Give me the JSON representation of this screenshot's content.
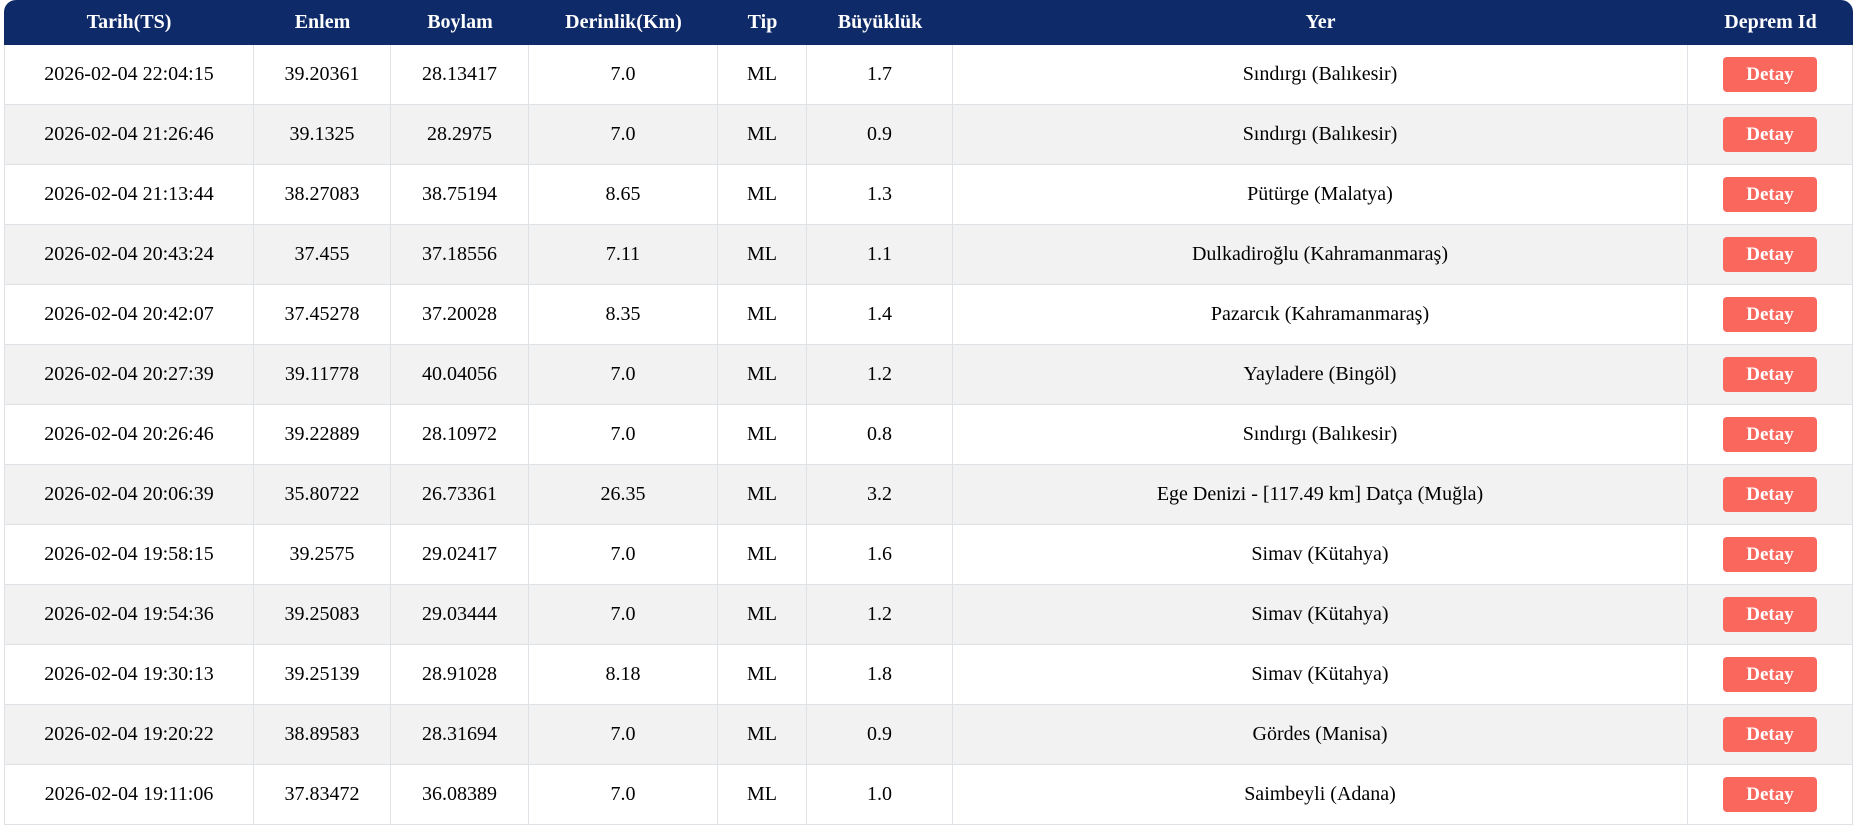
{
  "table": {
    "columns": [
      "Tarih(TS)",
      "Enlem",
      "Boylam",
      "Derinlik(Km)",
      "Tip",
      "Büyüklük",
      "Yer",
      "Deprem Id"
    ],
    "detail_button_label": "Detay",
    "rows": [
      {
        "tarih": "2026-02-04 22:04:15",
        "enlem": "39.20361",
        "boylam": "28.13417",
        "derinlik": "7.0",
        "tip": "ML",
        "buyukluk": "1.7",
        "yer": "Sındırgı (Balıkesir)"
      },
      {
        "tarih": "2026-02-04 21:26:46",
        "enlem": "39.1325",
        "boylam": "28.2975",
        "derinlik": "7.0",
        "tip": "ML",
        "buyukluk": "0.9",
        "yer": "Sındırgı (Balıkesir)"
      },
      {
        "tarih": "2026-02-04 21:13:44",
        "enlem": "38.27083",
        "boylam": "38.75194",
        "derinlik": "8.65",
        "tip": "ML",
        "buyukluk": "1.3",
        "yer": "Pütürge (Malatya)"
      },
      {
        "tarih": "2026-02-04 20:43:24",
        "enlem": "37.455",
        "boylam": "37.18556",
        "derinlik": "7.11",
        "tip": "ML",
        "buyukluk": "1.1",
        "yer": "Dulkadiroğlu (Kahramanmaraş)"
      },
      {
        "tarih": "2026-02-04 20:42:07",
        "enlem": "37.45278",
        "boylam": "37.20028",
        "derinlik": "8.35",
        "tip": "ML",
        "buyukluk": "1.4",
        "yer": "Pazarcık (Kahramanmaraş)"
      },
      {
        "tarih": "2026-02-04 20:27:39",
        "enlem": "39.11778",
        "boylam": "40.04056",
        "derinlik": "7.0",
        "tip": "ML",
        "buyukluk": "1.2",
        "yer": "Yayladere (Bingöl)"
      },
      {
        "tarih": "2026-02-04 20:26:46",
        "enlem": "39.22889",
        "boylam": "28.10972",
        "derinlik": "7.0",
        "tip": "ML",
        "buyukluk": "0.8",
        "yer": "Sındırgı (Balıkesir)"
      },
      {
        "tarih": "2026-02-04 20:06:39",
        "enlem": "35.80722",
        "boylam": "26.73361",
        "derinlik": "26.35",
        "tip": "ML",
        "buyukluk": "3.2",
        "yer": "Ege Denizi - [117.49 km] Datça (Muğla)"
      },
      {
        "tarih": "2026-02-04 19:58:15",
        "enlem": "39.2575",
        "boylam": "29.02417",
        "derinlik": "7.0",
        "tip": "ML",
        "buyukluk": "1.6",
        "yer": "Simav (Kütahya)"
      },
      {
        "tarih": "2026-02-04 19:54:36",
        "enlem": "39.25083",
        "boylam": "29.03444",
        "derinlik": "7.0",
        "tip": "ML",
        "buyukluk": "1.2",
        "yer": "Simav (Kütahya)"
      },
      {
        "tarih": "2026-02-04 19:30:13",
        "enlem": "39.25139",
        "boylam": "28.91028",
        "derinlik": "8.18",
        "tip": "ML",
        "buyukluk": "1.8",
        "yer": "Simav (Kütahya)"
      },
      {
        "tarih": "2026-02-04 19:20:22",
        "enlem": "38.89583",
        "boylam": "28.31694",
        "derinlik": "7.0",
        "tip": "ML",
        "buyukluk": "0.9",
        "yer": "Gördes (Manisa)"
      },
      {
        "tarih": "2026-02-04 19:11:06",
        "enlem": "37.83472",
        "boylam": "36.08389",
        "derinlik": "7.0",
        "tip": "ML",
        "buyukluk": "1.0",
        "yer": "Saimbeyli (Adana)"
      }
    ]
  },
  "colors": {
    "header_bg": "#0f2a68",
    "header_text": "#ffffff",
    "detail_button_bg": "#f9675d",
    "detail_button_text": "#ffffff",
    "row_stripe": "#f2f2f2",
    "border": "#dee2e6"
  }
}
